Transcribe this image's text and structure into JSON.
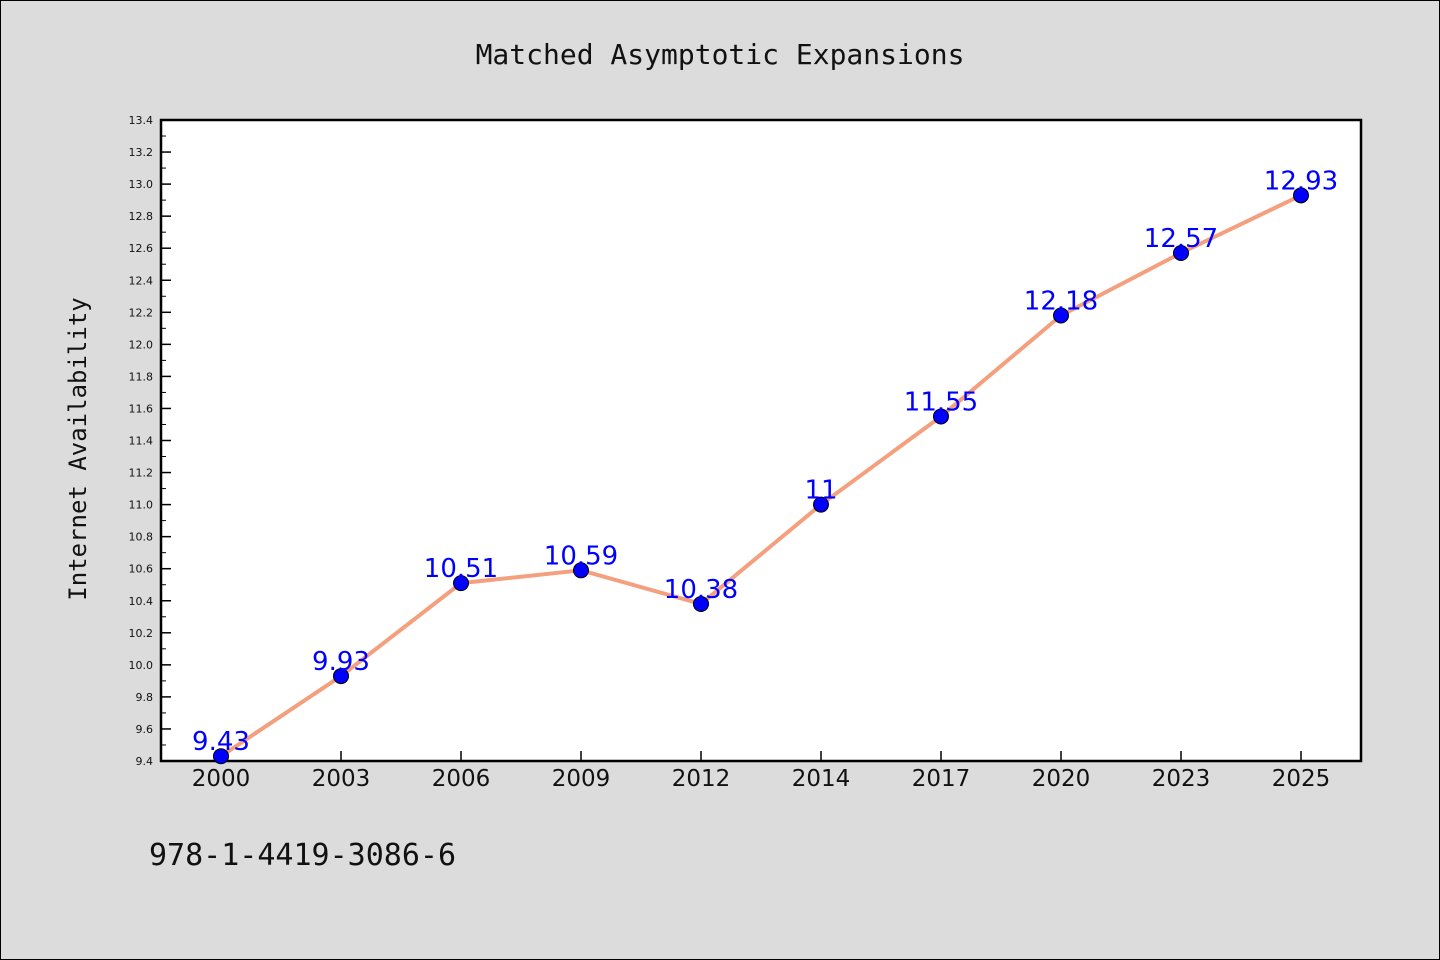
{
  "chart_data": {
    "type": "line",
    "title": "Matched Asymptotic Expansions",
    "ylabel": "Internet Availability",
    "xlabel": "",
    "categories": [
      "2000",
      "2003",
      "2006",
      "2009",
      "2012",
      "2014",
      "2017",
      "2020",
      "2023",
      "2025"
    ],
    "series": [
      {
        "values": [
          9.43,
          9.93,
          10.51,
          10.59,
          10.38,
          11,
          11.55,
          12.18,
          12.57,
          12.93
        ],
        "labels": [
          "9.43",
          "9.93",
          "10.51",
          "10.59",
          "10.38",
          "11",
          "11.55",
          "12.18",
          "12.57",
          "12.93"
        ],
        "line_color": "#f4a07f",
        "marker_color": "#0000ff"
      }
    ],
    "ylim": [
      9.4,
      13.4
    ],
    "yticks": [
      "9.4",
      "9.6",
      "9.8",
      "10.0",
      "10.2",
      "10.4",
      "10.6",
      "10.8",
      "11.0",
      "11.2",
      "11.4",
      "11.6",
      "11.8",
      "12.0",
      "12.2",
      "12.4",
      "12.6",
      "12.8",
      "13.0",
      "13.2",
      "13.4"
    ],
    "grid": false,
    "label_color": "#0000ff"
  },
  "footer": {
    "isbn": "978-1-4419-3086-6"
  }
}
